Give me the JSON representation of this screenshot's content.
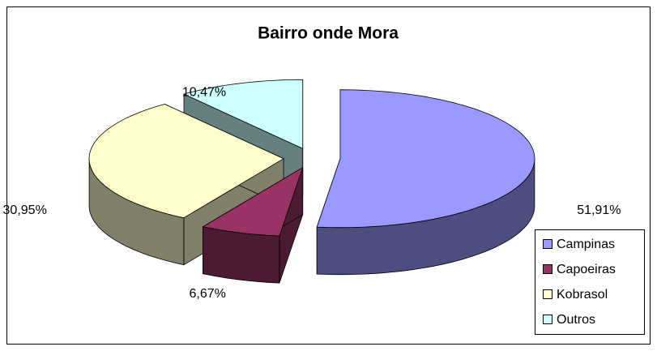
{
  "chart_data": {
    "type": "pie3d",
    "title": "Bairro onde Mora",
    "categories": [
      "Campinas",
      "Capoeiras",
      "Kobrasol",
      "Outros"
    ],
    "values": [
      51.91,
      6.67,
      30.95,
      10.47
    ],
    "value_labels": [
      "51,91%",
      "6,67%",
      "30,95%",
      "10,47%"
    ],
    "colors": [
      "#9999ff",
      "#993366",
      "#ffffcc",
      "#ccffff"
    ],
    "side_colors": [
      "#4d4d80",
      "#4d1a33",
      "#80806a",
      "#668080"
    ],
    "legend": "right"
  }
}
